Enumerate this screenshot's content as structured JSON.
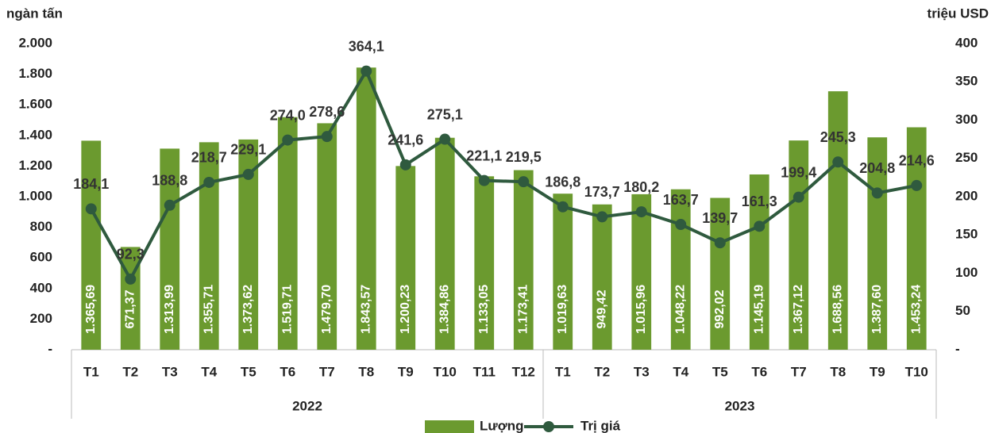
{
  "chart_data": {
    "type": "bar",
    "ylabel": "ngàn tấn",
    "y2label": "triệu USD",
    "categories": [
      "T1",
      "T2",
      "T3",
      "T4",
      "T5",
      "T6",
      "T7",
      "T8",
      "T9",
      "T10",
      "T11",
      "T12",
      "T1",
      "T2",
      "T3",
      "T4",
      "T5",
      "T6",
      "T7",
      "T8",
      "T9",
      "T10"
    ],
    "groups": [
      "2022",
      "2023"
    ],
    "series": [
      {
        "name": "Lượng",
        "type": "bar",
        "color": "#6b9a2f",
        "values": [
          1365.69,
          671.37,
          1313.99,
          1355.71,
          1373.62,
          1519.71,
          1479.7,
          1843.57,
          1200.23,
          1384.86,
          1133.05,
          1173.41,
          1019.63,
          949.42,
          1015.96,
          1048.22,
          992.02,
          1145.19,
          1367.12,
          1688.56,
          1387.6,
          1453.24
        ],
        "value_labels": [
          "1.365,69",
          "671,37",
          "1.313,99",
          "1.355,71",
          "1.373,62",
          "1.519,71",
          "1.479,70",
          "1.843,57",
          "1.200,23",
          "1.384,86",
          "1.133,05",
          "1.173,41",
          "1.019,63",
          "949,42",
          "1.015,96",
          "1.048,22",
          "992,02",
          "1.145,19",
          "1.367,12",
          "1.688,56",
          "1.387,60",
          "1.453,24"
        ]
      },
      {
        "name": "Trị giá",
        "type": "line",
        "axis": "y2",
        "color": "#2f5a3e",
        "values": [
          184.1,
          92.3,
          188.8,
          218.7,
          229.1,
          274.0,
          278.6,
          364.1,
          241.6,
          275.1,
          221.1,
          219.5,
          186.8,
          173.7,
          180.2,
          163.7,
          139.7,
          161.3,
          199.4,
          245.3,
          204.8,
          214.6
        ],
        "value_labels": [
          "184,1",
          "92,3",
          "188,8",
          "218,7",
          "229,1",
          "274,0",
          "278,6",
          "364,1",
          "241,6",
          "275,1",
          "221,1",
          "219,5",
          "186,8",
          "173,7",
          "180,2",
          "163,7",
          "139,7",
          "161,3",
          "199,4",
          "245,3",
          "204,8",
          "214,6"
        ]
      }
    ],
    "ylim": [
      0,
      2000
    ],
    "yticks": [
      {
        "value": 0,
        "label": "-"
      },
      200,
      400,
      600,
      800,
      {
        "value": 1000,
        "label": "1.000"
      },
      {
        "value": 1200,
        "label": "1.200"
      },
      {
        "value": 1400,
        "label": "1.400"
      },
      {
        "value": 1600,
        "label": "1.600"
      },
      {
        "value": 1800,
        "label": "1.800"
      },
      {
        "value": 2000,
        "label": "2.000"
      }
    ],
    "y2lim": [
      0,
      400
    ],
    "y2ticks": [
      {
        "value": 0,
        "label": "-"
      },
      50,
      100,
      150,
      200,
      250,
      300,
      350,
      400
    ],
    "grid": false,
    "legend": "bottom"
  }
}
